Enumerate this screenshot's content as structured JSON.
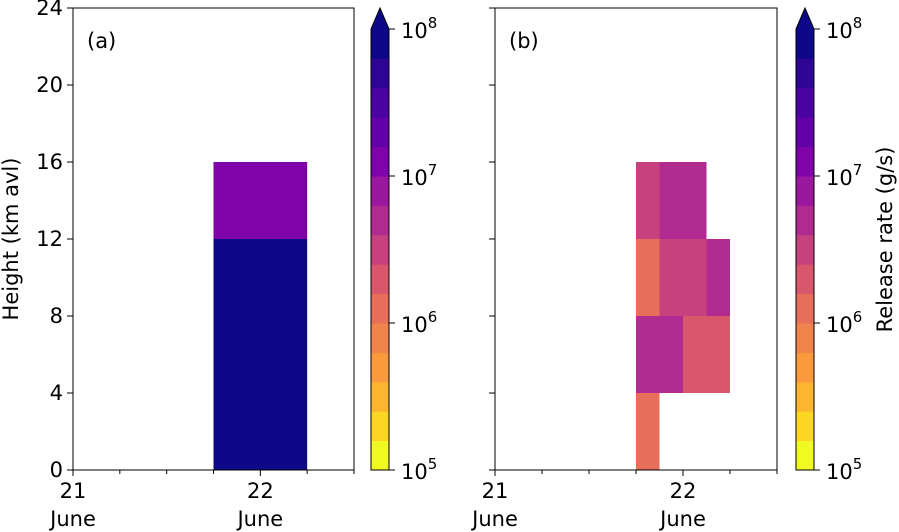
{
  "chart_data": [
    {
      "type": "heatmap",
      "panel_label": "(a)",
      "ylabel": "Height (km avl)",
      "ylim": [
        0,
        24
      ],
      "yticks": [
        "0",
        "4",
        "8",
        "12",
        "16",
        "20",
        "24"
      ],
      "xlim_days": [
        21,
        22.5
      ],
      "xtick_labels": [
        {
          "day": "21",
          "month": "June"
        },
        {
          "day": "22",
          "month": "June"
        }
      ],
      "cells": [
        {
          "t0": 21.75,
          "t1": 22.25,
          "h0": 0,
          "h1": 12,
          "rate": 100000000.0
        },
        {
          "t0": 21.75,
          "t1": 22.25,
          "h0": 12,
          "h1": 16,
          "rate": 15000000.0
        }
      ]
    },
    {
      "type": "heatmap",
      "panel_label": "(b)",
      "ylabel": "",
      "ylim": [
        0,
        24
      ],
      "xlim_days": [
        21,
        22.5
      ],
      "xtick_labels": [
        {
          "day": "21",
          "month": "June"
        },
        {
          "day": "22",
          "month": "June"
        }
      ],
      "cells": [
        {
          "t0": 21.75,
          "t1": 21.875,
          "h0": 0,
          "h1": 4,
          "rate": 1500000.0
        },
        {
          "t0": 21.75,
          "t1": 22.0,
          "h0": 4,
          "h1": 8,
          "rate": 6000000.0
        },
        {
          "t0": 22.0,
          "t1": 22.25,
          "h0": 4,
          "h1": 8,
          "rate": 2500000.0
        },
        {
          "t0": 21.75,
          "t1": 21.875,
          "h0": 8,
          "h1": 12,
          "rate": 1500000.0
        },
        {
          "t0": 21.875,
          "t1": 22.125,
          "h0": 8,
          "h1": 12,
          "rate": 3500000.0
        },
        {
          "t0": 22.125,
          "t1": 22.25,
          "h0": 8,
          "h1": 12,
          "rate": 6000000.0
        },
        {
          "t0": 21.75,
          "t1": 21.875,
          "h0": 12,
          "h1": 16,
          "rate": 3500000.0
        },
        {
          "t0": 21.875,
          "t1": 22.125,
          "h0": 12,
          "h1": 16,
          "rate": 6000000.0
        }
      ]
    }
  ],
  "colorbar": {
    "label": "Release rate (g/s)",
    "scale": "log",
    "range": [
      100000.0,
      100000000.0
    ],
    "extend": "max",
    "levels_per_decade": 5,
    "tick_labels": [
      {
        "base": "10",
        "exp": "5"
      },
      {
        "base": "10",
        "exp": "6"
      },
      {
        "base": "10",
        "exp": "7"
      },
      {
        "base": "10",
        "exp": "8"
      }
    ],
    "colors": [
      "#f0f921",
      "#fbd724",
      "#fdb42f",
      "#fa9a3c",
      "#f1834c",
      "#e76e5b",
      "#d8576b",
      "#c6417d",
      "#b12a90",
      "#9b179e",
      "#7e03a8",
      "#6300a7",
      "#4b03a1",
      "#2f0596",
      "#0d0887"
    ],
    "over_color": "#0d0887"
  }
}
